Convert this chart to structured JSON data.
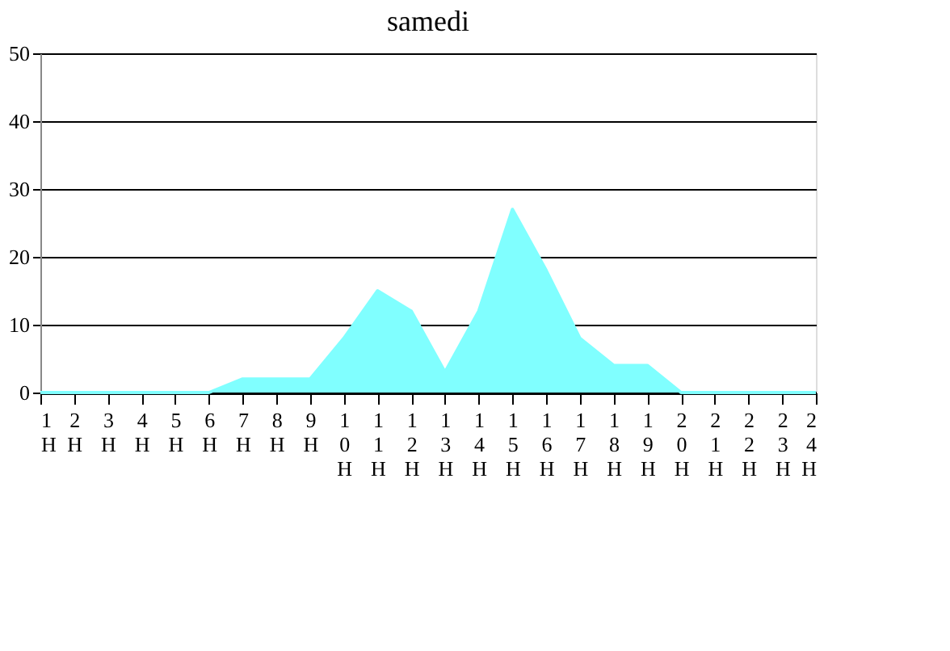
{
  "chart_data": {
    "type": "area",
    "title": "samedi",
    "categories": [
      "1H",
      "2H",
      "3H",
      "4H",
      "5H",
      "6H",
      "7H",
      "8H",
      "9H",
      "10H",
      "11H",
      "12H",
      "13H",
      "14H",
      "15H",
      "16H",
      "17H",
      "18H",
      "19H",
      "20H",
      "21H",
      "22H",
      "23H",
      "24H"
    ],
    "series": [
      {
        "color": "#80ffff",
        "values": [
          0,
          0,
          0,
          0,
          0,
          0,
          2,
          2,
          2,
          8,
          15,
          12,
          3,
          12,
          27,
          18,
          8,
          4,
          4,
          0,
          0,
          0,
          0,
          0
        ]
      }
    ],
    "ylim": [
      0,
      50
    ],
    "yticks": [
      0,
      10,
      20,
      30,
      40,
      50
    ],
    "grid": "y",
    "legend": false
  }
}
